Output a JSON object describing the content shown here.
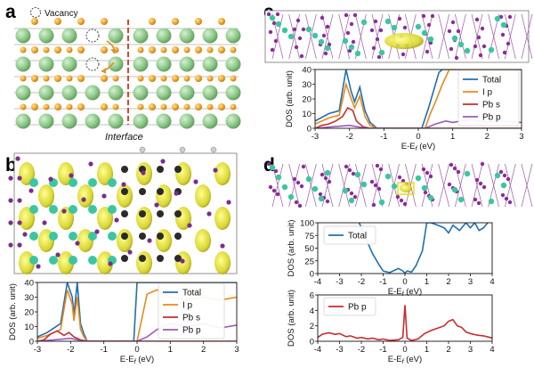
{
  "panels": {
    "a": {
      "label": "a",
      "legend_label": "Vacancy",
      "interface_label": "Interface",
      "colors": {
        "large_atom": "#8ec98a",
        "small_atom": "#f0a626",
        "interface_line": "#d6452b",
        "arrow": "#e0902a"
      }
    },
    "b": {
      "label": "b"
    },
    "c": {
      "label": "c"
    },
    "d": {
      "label": "d"
    }
  },
  "chart_data": [
    {
      "id": "b",
      "type": "line",
      "xlabel": "E-E_f (eV)",
      "ylabel": "DOS (arb. unit)",
      "xlim": [
        -3,
        3
      ],
      "ylim": [
        0,
        40
      ],
      "xticks": [
        -3,
        -2,
        -1,
        0,
        1,
        2,
        3
      ],
      "yticks": [
        0,
        10,
        20,
        30,
        40
      ],
      "legend": {
        "position": "top-right"
      },
      "series": [
        {
          "name": "Total",
          "color": "#1f6fb2",
          "points": [
            [
              -3,
              3
            ],
            [
              -2.7,
              6
            ],
            [
              -2.5,
              9
            ],
            [
              -2.3,
              12
            ],
            [
              -2.1,
              40
            ],
            [
              -1.95,
              30
            ],
            [
              -1.9,
              18
            ],
            [
              -1.8,
              40
            ],
            [
              -1.7,
              12
            ],
            [
              -1.6,
              5
            ],
            [
              -1.5,
              0
            ],
            [
              -0.1,
              0
            ],
            [
              0,
              40
            ],
            [
              0.2,
              40
            ],
            [
              0.5,
              40
            ],
            [
              1,
              40
            ],
            [
              1.5,
              40
            ],
            [
              2,
              40
            ],
            [
              2.5,
              40
            ],
            [
              3,
              40
            ]
          ]
        },
        {
          "name": "I p",
          "color": "#e8891d",
          "points": [
            [
              -3,
              2
            ],
            [
              -2.7,
              4
            ],
            [
              -2.5,
              6
            ],
            [
              -2.3,
              8
            ],
            [
              -2.1,
              35
            ],
            [
              -1.95,
              25
            ],
            [
              -1.9,
              14
            ],
            [
              -1.8,
              30
            ],
            [
              -1.7,
              8
            ],
            [
              -1.6,
              3
            ],
            [
              -1.5,
              0
            ],
            [
              0,
              0
            ],
            [
              0.3,
              32
            ],
            [
              0.6,
              35
            ],
            [
              1,
              30
            ],
            [
              1.5,
              28
            ],
            [
              2,
              30
            ],
            [
              2.5,
              28
            ],
            [
              3,
              30
            ]
          ]
        },
        {
          "name": "Pb s",
          "color": "#c62d2d",
          "points": [
            [
              -3,
              0
            ],
            [
              -2.8,
              1
            ],
            [
              -2.6,
              5
            ],
            [
              -2.4,
              7
            ],
            [
              -2.2,
              4
            ],
            [
              -2.05,
              6
            ],
            [
              -1.9,
              3
            ],
            [
              -1.7,
              1
            ],
            [
              -1.5,
              0
            ],
            [
              3,
              0
            ]
          ]
        },
        {
          "name": "Pb p",
          "color": "#9c59b6",
          "points": [
            [
              -3,
              0
            ],
            [
              -2.5,
              1
            ],
            [
              -2,
              2
            ],
            [
              -1.6,
              0
            ],
            [
              0,
              0
            ],
            [
              0.3,
              3
            ],
            [
              0.6,
              8
            ],
            [
              1,
              12
            ],
            [
              1.5,
              10
            ],
            [
              2,
              12
            ],
            [
              2.5,
              9
            ],
            [
              3,
              11
            ]
          ]
        }
      ]
    },
    {
      "id": "c",
      "type": "line",
      "xlabel": "E-E_f (eV)",
      "ylabel": "DOS (arb. unit)",
      "xlim": [
        -3,
        3
      ],
      "ylim": [
        0,
        40
      ],
      "xticks": [
        -3,
        -2,
        -1,
        0,
        1,
        2,
        3
      ],
      "yticks": [
        0,
        10,
        20,
        30,
        40
      ],
      "legend": {
        "position": "top-right"
      },
      "series": [
        {
          "name": "Total",
          "color": "#1f6fb2",
          "points": [
            [
              -3,
              5
            ],
            [
              -2.6,
              10
            ],
            [
              -2.3,
              12
            ],
            [
              -2.1,
              40
            ],
            [
              -1.95,
              25
            ],
            [
              -1.85,
              18
            ],
            [
              -1.7,
              28
            ],
            [
              -1.55,
              12
            ],
            [
              -1.4,
              4
            ],
            [
              -1.2,
              0
            ],
            [
              0.1,
              0
            ],
            [
              0.3,
              14
            ],
            [
              0.45,
              26
            ],
            [
              0.6,
              38
            ],
            [
              0.7,
              40
            ],
            [
              3,
              40
            ]
          ]
        },
        {
          "name": "I p",
          "color": "#e8891d",
          "points": [
            [
              -3,
              3
            ],
            [
              -2.6,
              7
            ],
            [
              -2.3,
              9
            ],
            [
              -2.1,
              30
            ],
            [
              -1.95,
              20
            ],
            [
              -1.85,
              14
            ],
            [
              -1.7,
              22
            ],
            [
              -1.55,
              8
            ],
            [
              -1.4,
              2
            ],
            [
              -1.2,
              0
            ],
            [
              0.2,
              0
            ],
            [
              0.35,
              10
            ],
            [
              0.5,
              18
            ],
            [
              0.7,
              30
            ],
            [
              0.9,
              40
            ],
            [
              3,
              40
            ]
          ]
        },
        {
          "name": "Pb s",
          "color": "#c62d2d",
          "points": [
            [
              -3,
              0
            ],
            [
              -2.8,
              2
            ],
            [
              -2.6,
              3
            ],
            [
              -2.4,
              5
            ],
            [
              -2.2,
              8
            ],
            [
              -2.05,
              14
            ],
            [
              -1.9,
              12
            ],
            [
              -1.8,
              5
            ],
            [
              -1.6,
              1
            ],
            [
              -1.4,
              0
            ],
            [
              3,
              0
            ]
          ]
        },
        {
          "name": "Pb p",
          "color": "#9c59b6",
          "points": [
            [
              -3,
              0
            ],
            [
              -2.5,
              1
            ],
            [
              -2,
              2
            ],
            [
              -1.5,
              0
            ],
            [
              0.2,
              0
            ],
            [
              0.5,
              3
            ],
            [
              0.8,
              5
            ],
            [
              1,
              4
            ],
            [
              1.5,
              6
            ],
            [
              2,
              4
            ],
            [
              2.5,
              5
            ],
            [
              3,
              4
            ]
          ]
        }
      ]
    },
    {
      "id": "d_total",
      "type": "line",
      "xlabel": "E-E_f (eV)",
      "ylabel": "DOS (arb. unit)",
      "xlim": [
        -4,
        4
      ],
      "ylim": [
        0,
        100
      ],
      "xticks": [
        -4,
        -3,
        -2,
        -1,
        0,
        1,
        2,
        3,
        4
      ],
      "yticks": [
        0,
        25,
        50,
        75,
        100
      ],
      "legend": {
        "position": "top-left"
      },
      "series": [
        {
          "name": "Total",
          "color": "#1f6fb2",
          "points": [
            [
              -2.1,
              100
            ],
            [
              -1.8,
              70
            ],
            [
              -1.5,
              40
            ],
            [
              -1.2,
              18
            ],
            [
              -1.0,
              5
            ],
            [
              -0.7,
              2
            ],
            [
              -0.3,
              10
            ],
            [
              -0.1,
              5
            ],
            [
              0,
              1
            ],
            [
              0.1,
              5
            ],
            [
              0.3,
              3
            ],
            [
              0.5,
              15
            ],
            [
              0.8,
              45
            ],
            [
              1.0,
              100
            ],
            [
              1.2,
              100
            ],
            [
              1.5,
              95
            ],
            [
              1.8,
              90
            ],
            [
              2.0,
              80
            ],
            [
              2.2,
              95
            ],
            [
              2.5,
              85
            ],
            [
              2.8,
              100
            ],
            [
              3.0,
              90
            ],
            [
              3.2,
              100
            ],
            [
              3.4,
              85
            ],
            [
              3.6,
              90
            ],
            [
              3.8,
              100
            ]
          ]
        }
      ]
    },
    {
      "id": "d_pb",
      "type": "line",
      "xlabel": "E-E_f (eV)",
      "ylabel": "DOS (arb. unit)",
      "xlim": [
        -4,
        4
      ],
      "ylim": [
        0,
        6
      ],
      "xticks": [
        -4,
        -3,
        -2,
        -1,
        0,
        1,
        2,
        3,
        4
      ],
      "yticks": [
        0,
        2,
        4,
        6
      ],
      "legend": {
        "position": "top-left"
      },
      "series": [
        {
          "name": "Pb p",
          "color": "#c62d2d",
          "points": [
            [
              -4,
              0.5
            ],
            [
              -3.8,
              0.9
            ],
            [
              -3.5,
              1.1
            ],
            [
              -3.2,
              0.9
            ],
            [
              -3.0,
              1.0
            ],
            [
              -2.7,
              0.6
            ],
            [
              -2.5,
              0.7
            ],
            [
              -2.2,
              0.4
            ],
            [
              -2.0,
              0.5
            ],
            [
              -1.7,
              0.3
            ],
            [
              -1.5,
              0.4
            ],
            [
              -1.2,
              0.2
            ],
            [
              -1.0,
              0.3
            ],
            [
              -0.7,
              0.1
            ],
            [
              -0.3,
              0.2
            ],
            [
              -0.1,
              0.5
            ],
            [
              0,
              4.7
            ],
            [
              0.1,
              0.4
            ],
            [
              0.3,
              0.1
            ],
            [
              0.6,
              0.3
            ],
            [
              0.9,
              1.0
            ],
            [
              1.2,
              1.4
            ],
            [
              1.5,
              1.7
            ],
            [
              1.8,
              2.0
            ],
            [
              2.0,
              2.6
            ],
            [
              2.2,
              2.8
            ],
            [
              2.4,
              2.0
            ],
            [
              2.6,
              1.8
            ],
            [
              2.8,
              1.2
            ],
            [
              3.0,
              1.0
            ],
            [
              3.3,
              0.8
            ],
            [
              3.6,
              0.7
            ],
            [
              3.9,
              0.5
            ],
            [
              4,
              0.4
            ]
          ]
        }
      ]
    }
  ]
}
